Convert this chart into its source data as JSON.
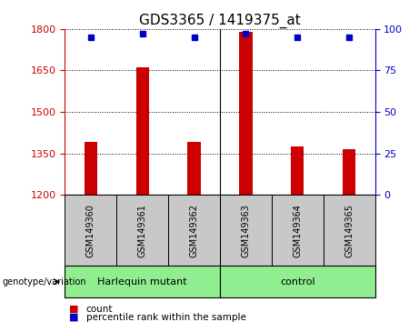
{
  "title": "GDS3365 / 1419375_at",
  "samples": [
    "GSM149360",
    "GSM149361",
    "GSM149362",
    "GSM149363",
    "GSM149364",
    "GSM149365"
  ],
  "counts": [
    1390,
    1660,
    1390,
    1790,
    1375,
    1365
  ],
  "percentiles": [
    95,
    97,
    95,
    97,
    95,
    95
  ],
  "ylim_left": [
    1200,
    1800
  ],
  "ylim_right": [
    0,
    100
  ],
  "yticks_left": [
    1200,
    1350,
    1500,
    1650,
    1800
  ],
  "yticks_right": [
    0,
    25,
    50,
    75,
    100
  ],
  "bar_color": "#cc0000",
  "dot_color": "#0000cc",
  "bar_baseline": 1200,
  "groups": [
    {
      "label": "Harlequin mutant",
      "color": "#90ee90"
    },
    {
      "label": "control",
      "color": "#90ee90"
    }
  ],
  "group_box_color": "#c8c8c8",
  "legend_count_label": "count",
  "legend_percentile_label": "percentile rank within the sample",
  "xlabel_label": "genotype/variation",
  "left_axis_color": "#cc0000",
  "right_axis_color": "#0000cc",
  "title_fontsize": 11,
  "tick_fontsize": 8,
  "sample_fontsize": 7,
  "group_fontsize": 8,
  "legend_fontsize": 7.5
}
